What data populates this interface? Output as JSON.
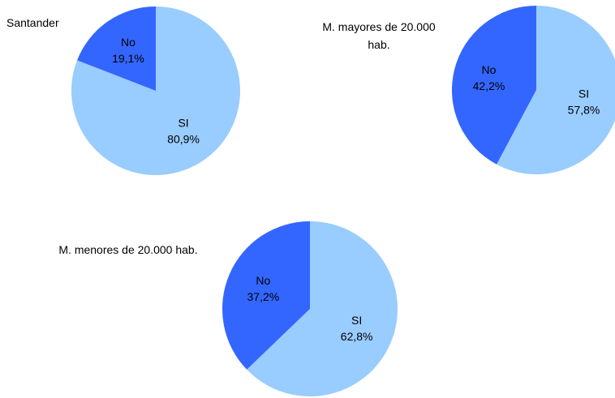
{
  "chart_data": [
    {
      "type": "pie",
      "title": "Santander",
      "categories": [
        "SI",
        "No"
      ],
      "values": [
        80.9,
        19.1
      ],
      "value_labels": [
        "80,9%",
        "19,1%"
      ],
      "colors": [
        "#99ccff",
        "#3366ff"
      ]
    },
    {
      "type": "pie",
      "title": "M. mayores de 20.000 hab.",
      "categories": [
        "SI",
        "No"
      ],
      "values": [
        57.8,
        42.2
      ],
      "value_labels": [
        "57,8%",
        "42,2%"
      ],
      "colors": [
        "#99ccff",
        "#3366ff"
      ]
    },
    {
      "type": "pie",
      "title": "M. menores de 20.000 hab.",
      "categories": [
        "SI",
        "No"
      ],
      "values": [
        62.8,
        37.2
      ],
      "value_labels": [
        "62,8%",
        "37,2%"
      ],
      "colors": [
        "#99ccff",
        "#3366ff"
      ]
    }
  ]
}
